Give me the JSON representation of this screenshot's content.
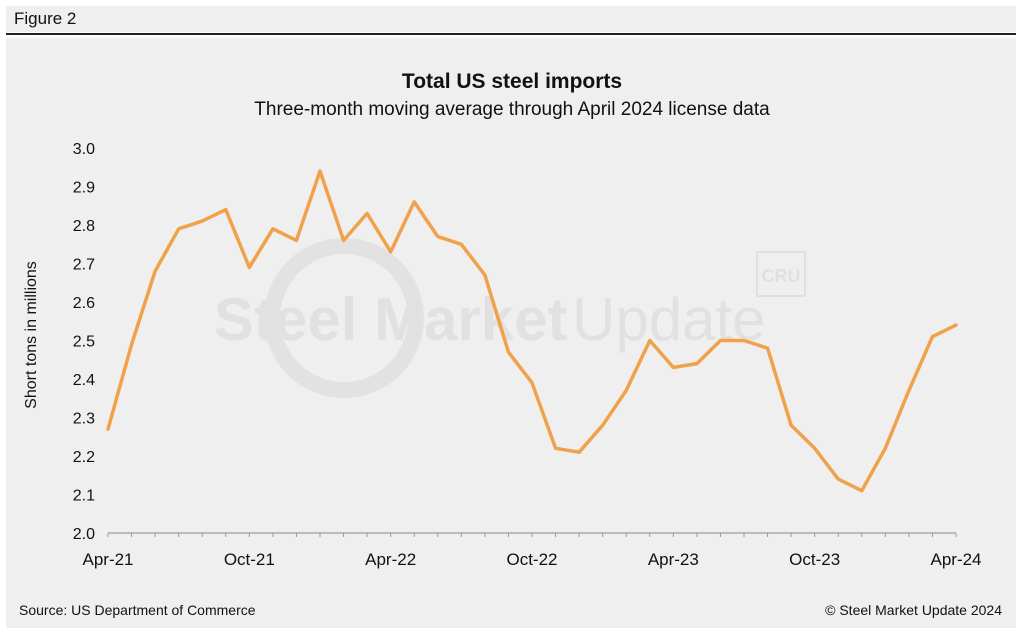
{
  "figure": {
    "label": "Figure 2"
  },
  "footer": {
    "source": "Source: US Department of Commerce",
    "copyright": "© Steel Market Update 2024"
  },
  "watermark": {
    "text_bold": "Steel Market",
    "text_light": "Update",
    "badge": "CRU"
  },
  "colors": {
    "line": "#F0A14A",
    "text": "#111111",
    "panel": "#EFEFEF"
  },
  "chart_data": {
    "type": "line",
    "title": "Total US steel imports",
    "subtitle": "Three-month moving average through April 2024 license data",
    "xlabel": "",
    "ylabel": "Short tons in millions",
    "ylim": [
      2.0,
      3.0
    ],
    "yticks": [
      "2.0",
      "2.1",
      "2.2",
      "2.3",
      "2.4",
      "2.5",
      "2.6",
      "2.7",
      "2.8",
      "2.9",
      "3.0"
    ],
    "xtick_labels": [
      "Apr-21",
      "Oct-21",
      "Apr-22",
      "Oct-22",
      "Apr-23",
      "Oct-23",
      "Apr-24"
    ],
    "grid": false,
    "series": [
      {
        "name": "Total US steel imports",
        "x": [
          "Apr-21",
          "May-21",
          "Jun-21",
          "Jul-21",
          "Aug-21",
          "Sep-21",
          "Oct-21",
          "Nov-21",
          "Dec-21",
          "Jan-22",
          "Feb-22",
          "Mar-22",
          "Apr-22",
          "May-22",
          "Jun-22",
          "Jul-22",
          "Aug-22",
          "Sep-22",
          "Oct-22",
          "Nov-22",
          "Dec-22",
          "Jan-23",
          "Feb-23",
          "Mar-23",
          "Apr-23",
          "May-23",
          "Jun-23",
          "Jul-23",
          "Aug-23",
          "Sep-23",
          "Oct-23",
          "Nov-23",
          "Dec-23",
          "Jan-24",
          "Feb-24",
          "Mar-24",
          "Apr-24"
        ],
        "values": [
          2.27,
          2.49,
          2.68,
          2.79,
          2.81,
          2.84,
          2.69,
          2.79,
          2.76,
          2.94,
          2.76,
          2.83,
          2.73,
          2.86,
          2.77,
          2.75,
          2.67,
          2.47,
          2.39,
          2.22,
          2.21,
          2.28,
          2.37,
          2.5,
          2.43,
          2.44,
          2.5,
          2.5,
          2.48,
          2.28,
          2.22,
          2.14,
          2.11,
          2.22,
          2.37,
          2.51,
          2.54
        ]
      }
    ]
  }
}
